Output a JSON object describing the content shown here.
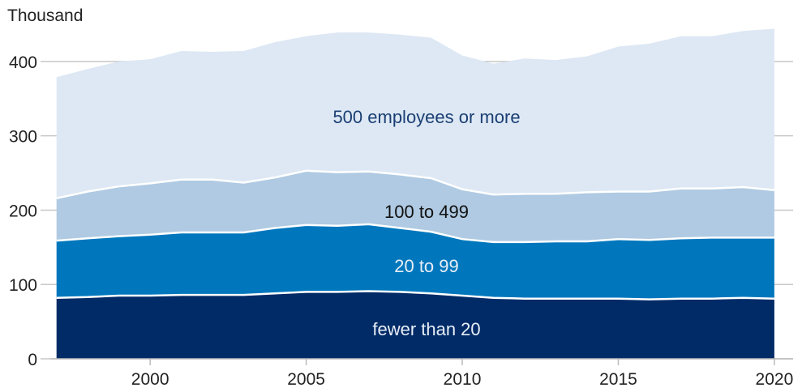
{
  "chart_data": {
    "type": "area",
    "stacked": true,
    "ylabel": "Thousand",
    "ylim": [
      0,
      450
    ],
    "yticks": [
      0,
      100,
      200,
      300,
      400
    ],
    "xticks": [
      2000,
      2005,
      2010,
      2015,
      2020
    ],
    "xlim": [
      1996.8,
      2020.6
    ],
    "grid": "partial",
    "x": [
      1997,
      1998,
      1999,
      2000,
      2001,
      2002,
      2003,
      2004,
      2005,
      2006,
      2007,
      2008,
      2009,
      2010,
      2011,
      2012,
      2013,
      2014,
      2015,
      2016,
      2017,
      2018,
      2019,
      2020
    ],
    "series": [
      {
        "name": "fewer than 20",
        "color": "#002b67",
        "label_color": "#e8eef6",
        "values": [
          82,
          83,
          85,
          85,
          86,
          86,
          86,
          88,
          90,
          90,
          91,
          90,
          88,
          85,
          82,
          81,
          81,
          81,
          81,
          80,
          81,
          81,
          82,
          81
        ]
      },
      {
        "name": "20 to 99",
        "color": "#0077bd",
        "label_color": "#e8eef6",
        "values": [
          77,
          79,
          80,
          82,
          84,
          84,
          84,
          88,
          90,
          89,
          90,
          86,
          83,
          76,
          75,
          76,
          77,
          77,
          80,
          80,
          81,
          82,
          81,
          82
        ]
      },
      {
        "name": "100 to 499",
        "color": "#afcae2",
        "label_color": "#111111",
        "values": [
          57,
          63,
          67,
          69,
          71,
          71,
          67,
          68,
          73,
          72,
          71,
          72,
          72,
          67,
          64,
          65,
          64,
          66,
          64,
          65,
          67,
          66,
          68,
          64
        ]
      },
      {
        "name": "500 employees or more",
        "color": "#dde8f4",
        "label_color": "#1b3f73",
        "values": [
          163,
          165,
          168,
          167,
          173,
          172,
          177,
          182,
          181,
          188,
          187,
          188,
          189,
          180,
          176,
          182,
          180,
          183,
          195,
          199,
          205,
          205,
          210,
          217
        ]
      }
    ]
  }
}
